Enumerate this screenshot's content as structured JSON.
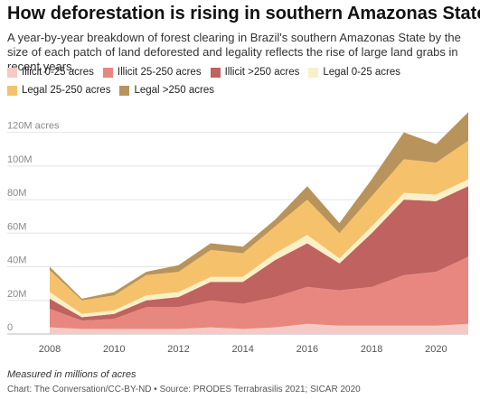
{
  "title": "How deforestation is rising in southern Amazonas State",
  "subtitle": "A year-by-year breakdown of forest clearing in Brazil's southern Amazonas State by the size of each patch of land deforested and legality reflects the rise of large land grabs in recent years.",
  "footnote": "Measured in millions of acres",
  "source": "Chart: The Conversation/CC-BY-ND • Source: PRODES Terrabrasilis 2021; SICAR 2020",
  "chart_data": {
    "type": "area",
    "stacked": true,
    "x": [
      2008,
      2009,
      2010,
      2011,
      2012,
      2013,
      2014,
      2015,
      2016,
      2017,
      2018,
      2019,
      2020,
      2021
    ],
    "xticks": [
      2008,
      2010,
      2012,
      2014,
      2016,
      2018,
      2020
    ],
    "yticks": [
      0,
      20,
      40,
      60,
      80,
      100,
      120
    ],
    "ytick_labels": [
      "0",
      "20M",
      "40M",
      "60M",
      "80M",
      "100M",
      "120M acres"
    ],
    "ylim": [
      0,
      130
    ],
    "grid": true,
    "legend_position": "top",
    "series": [
      {
        "name": "Illicit 0-25 acres",
        "color": "#f7c9c4",
        "values": [
          4,
          3,
          3,
          3,
          3,
          4,
          3,
          4,
          6,
          5,
          5,
          5,
          5,
          6
        ]
      },
      {
        "name": "Illicit 25-250 acres",
        "color": "#e8877f",
        "values": [
          11,
          5,
          6,
          13,
          13,
          16,
          15,
          18,
          22,
          21,
          23,
          30,
          32,
          40
        ]
      },
      {
        "name": "Illicit >250 acres",
        "color": "#c0625f",
        "values": [
          6,
          2,
          3,
          4,
          6,
          11,
          13,
          22,
          26,
          16,
          32,
          45,
          42,
          42
        ]
      },
      {
        "name": "Legal 0-25 acres",
        "color": "#faf0c8",
        "values": [
          4,
          2,
          2,
          3,
          3,
          3,
          3,
          4,
          5,
          3,
          4,
          4,
          4,
          4
        ]
      },
      {
        "name": "Legal 25-250 acres",
        "color": "#f5c26b",
        "values": [
          13,
          8,
          9,
          12,
          12,
          16,
          14,
          16,
          21,
          15,
          18,
          20,
          19,
          23
        ]
      },
      {
        "name": "Legal >250 acres",
        "color": "#b8935c",
        "values": [
          2,
          1,
          2,
          2,
          4,
          4,
          4,
          4,
          8,
          6,
          10,
          16,
          11,
          17
        ]
      }
    ]
  }
}
